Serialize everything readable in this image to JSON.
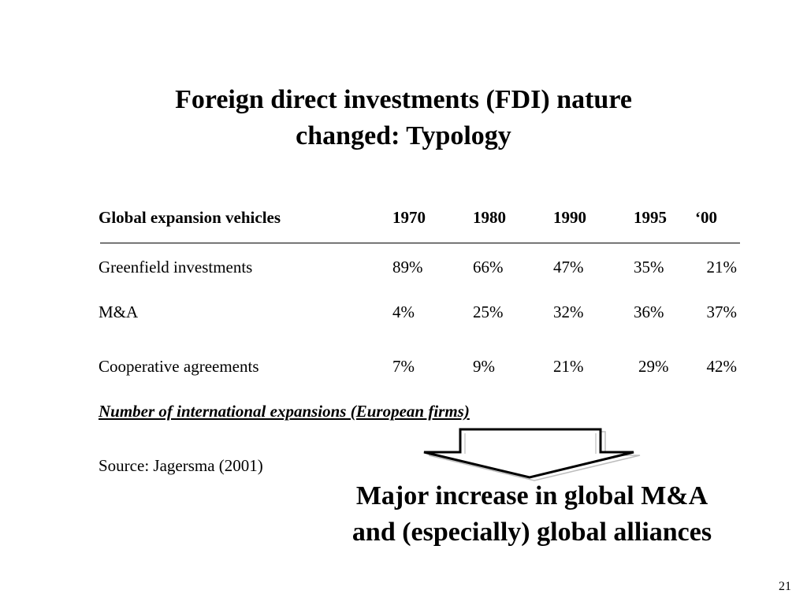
{
  "slide": {
    "title_line1": "Foreign direct investments (FDI) nature",
    "title_line2": "changed: Typology",
    "page_number": "21"
  },
  "table": {
    "header": {
      "label": "Global expansion vehicles",
      "years": [
        "1970",
        "1980",
        "1990",
        "1995",
        "‘00"
      ]
    },
    "rows": [
      {
        "label": "Greenfield investments",
        "values": [
          "89%",
          "66%",
          "47%",
          "35%",
          "21%"
        ]
      },
      {
        "label": "M&A",
        "values": [
          "4%",
          "25%",
          "32%",
          "36%",
          "37%"
        ]
      },
      {
        "label": "Cooperative agreements",
        "values": [
          "7%",
          "9%",
          "21%",
          "29%",
          "42%"
        ]
      }
    ],
    "caption": "Number of international expansions (European firms)",
    "source": "Source: Jagersma (2001)"
  },
  "conclusion": {
    "line1": "Major increase in global M&A",
    "line2": "and (especially) global alliances"
  }
}
